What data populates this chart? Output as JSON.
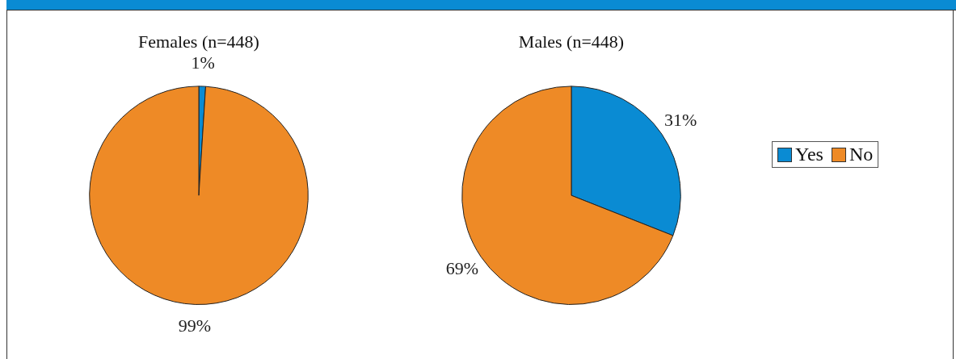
{
  "chart_data": [
    {
      "type": "pie",
      "title": "Females (n=448)",
      "categories": [
        null,
        null
      ],
      "values": [
        1,
        99
      ],
      "value_labels": [
        "1%",
        "99%"
      ],
      "colors": [
        "#0a8bd3",
        "#ee8a26"
      ],
      "legend": false
    },
    {
      "type": "pie",
      "title": "Males (n=448)",
      "categories": [
        "Yes",
        "No"
      ],
      "values": [
        31,
        69
      ],
      "value_labels": [
        "31%",
        "69%"
      ],
      "colors": [
        "#0a8bd3",
        "#ee8a26"
      ],
      "legend": "right"
    }
  ]
}
